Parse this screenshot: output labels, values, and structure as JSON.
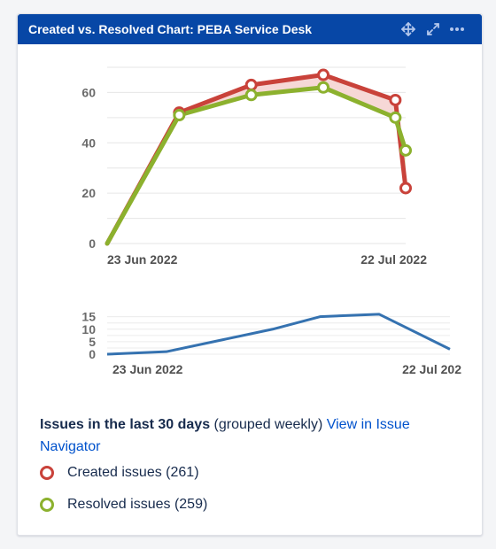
{
  "gadget": {
    "title": "Created vs. Resolved Chart: PEBA Service Desk",
    "controls": {
      "move_icon": "move-icon",
      "expand_icon": "expand-icon",
      "more_icon": "more-icon"
    }
  },
  "colors": {
    "header_bg": "#0747a6",
    "created": "#c9423a",
    "resolved": "#8cb12e",
    "overview_line": "#3572b0",
    "link": "#0052cc",
    "created_fill": "#f6d8d6",
    "resolved_fill": "#e6efcf"
  },
  "chart_data": [
    {
      "type": "line",
      "x": [
        "2022-06-23",
        "2022-06-30",
        "2022-07-07",
        "2022-07-14",
        "2022-07-21",
        "2022-07-22"
      ],
      "x_tick_labels": [
        "23 Jun 2022",
        "22 Jul 2022"
      ],
      "series": [
        {
          "name": "Created issues",
          "values": [
            0,
            52,
            63,
            67,
            57,
            22
          ]
        },
        {
          "name": "Resolved issues",
          "values": [
            0,
            51,
            59,
            62,
            50,
            37
          ]
        }
      ],
      "y_ticks": [
        0,
        20,
        40,
        60
      ],
      "ylim": [
        0,
        70
      ],
      "grid": true
    },
    {
      "type": "line",
      "x": [
        "2022-06-23",
        "2022-06-28",
        "2022-07-02",
        "2022-07-07",
        "2022-07-11",
        "2022-07-16",
        "2022-07-22"
      ],
      "x_tick_labels": [
        "23 Jun 2022",
        "22 Jul 202"
      ],
      "series": [
        {
          "values": [
            0,
            1,
            5,
            10,
            15,
            16,
            2
          ]
        }
      ],
      "y_ticks": [
        0,
        5,
        10,
        15
      ],
      "ylim": [
        0,
        17
      ],
      "grid": true
    }
  ],
  "summary": {
    "heading": "Issues in the last 30 days",
    "grouping": "(grouped weekly)",
    "link_text": "View in Issue Navigator"
  },
  "legend": {
    "created": "Created issues (261)",
    "resolved": "Resolved issues (259)"
  }
}
